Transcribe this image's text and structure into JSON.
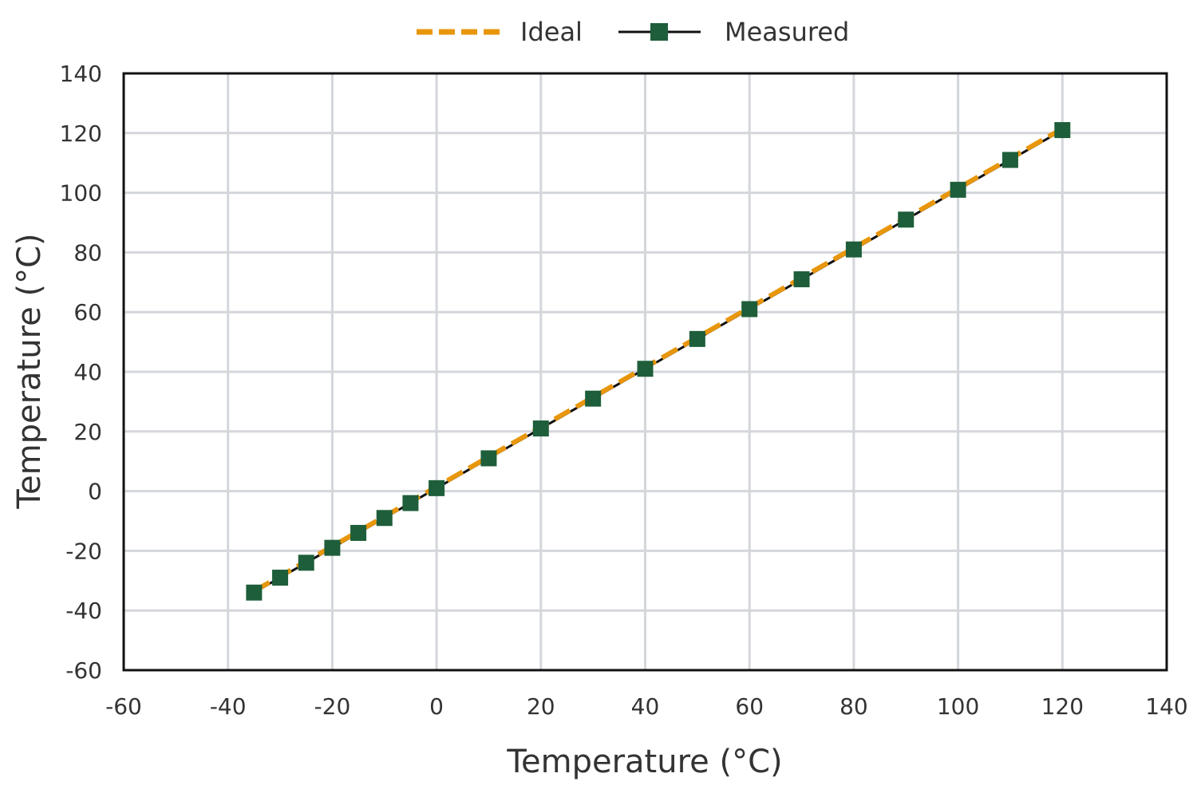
{
  "chart_data": {
    "type": "line",
    "title": "",
    "xlabel": "Temperature (°C)",
    "ylabel": "Temperature (°C)",
    "xlim": [
      -60,
      140
    ],
    "ylim": [
      -60,
      140
    ],
    "xticks": [
      -60,
      -40,
      -20,
      0,
      20,
      40,
      60,
      80,
      100,
      120,
      140
    ],
    "yticks": [
      -60,
      -40,
      -20,
      0,
      20,
      40,
      60,
      80,
      100,
      120,
      140
    ],
    "grid": true,
    "legend_position": "top-center",
    "series": [
      {
        "name": "Ideal",
        "style": "dashed",
        "color": "#e8960c",
        "x": [
          -35,
          120
        ],
        "y": [
          -33.5,
          121.5
        ]
      },
      {
        "name": "Measured",
        "style": "solid-with-square-markers",
        "color": "#111111",
        "marker_color": "#1e5e3a",
        "x": [
          -35,
          -30,
          -25,
          -20,
          -15,
          -10,
          -5,
          0,
          10,
          20,
          30,
          40,
          50,
          60,
          70,
          80,
          90,
          100,
          110,
          120
        ],
        "y": [
          -34,
          -29,
          -24,
          -19,
          -14,
          -9,
          -4,
          1,
          11,
          21,
          31,
          41,
          51,
          61,
          71,
          81,
          91,
          101,
          111,
          121
        ]
      }
    ]
  }
}
